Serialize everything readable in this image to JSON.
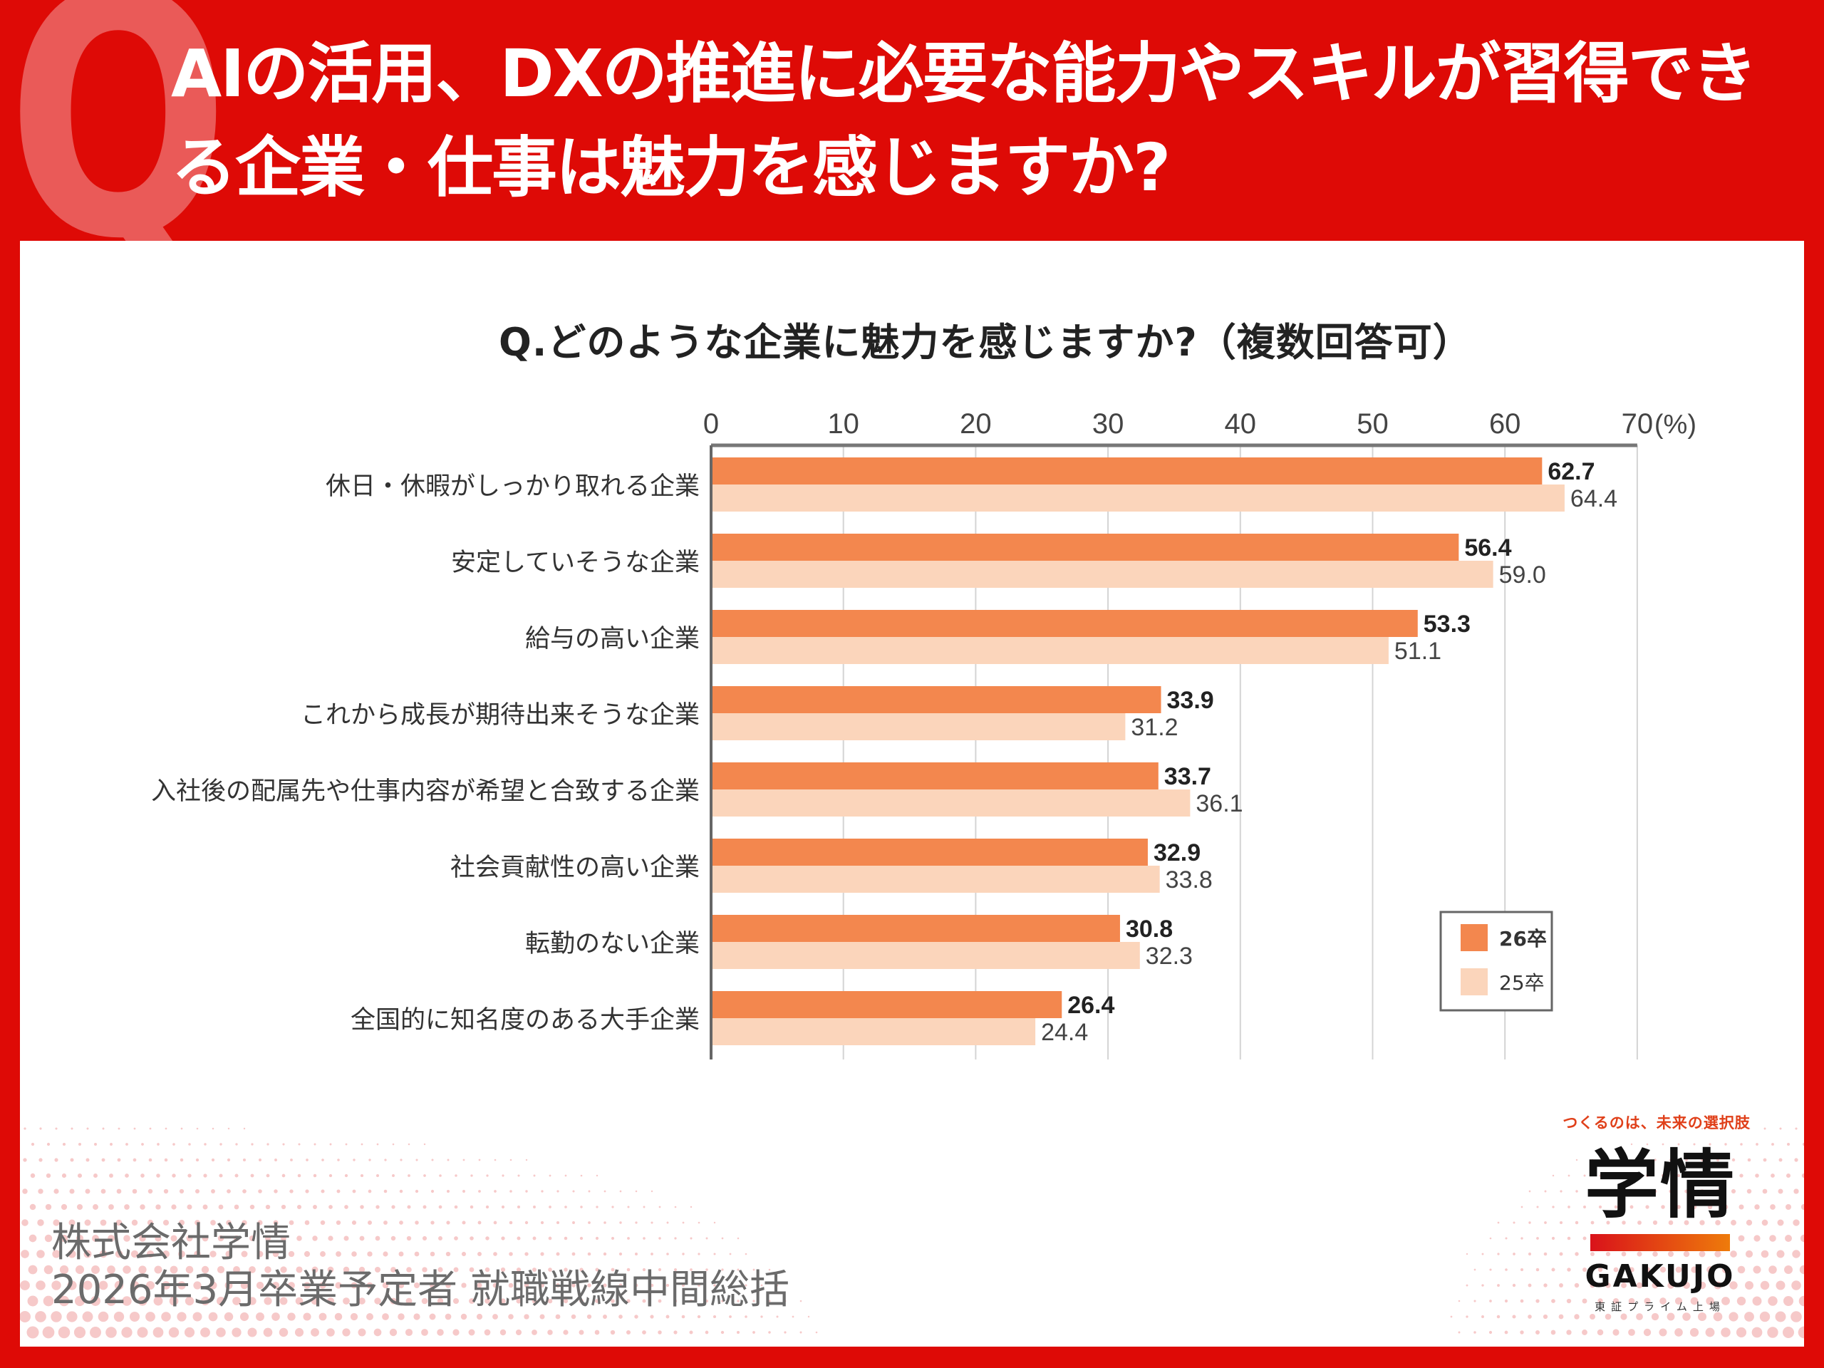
{
  "header": {
    "q_mark": "Q",
    "title_line1": "AIの活用、DXの推進に必要な能力やスキルが習得でき",
    "title_line2": "る企業・仕事は魅力を感じますか?"
  },
  "colors": {
    "background_red": "#de0a06",
    "series_26": "#f3874e",
    "series_25": "#fbd5bb"
  },
  "chart_data": {
    "type": "bar",
    "orientation": "horizontal",
    "title": "Q.どのような企業に魅力を感じますか?（複数回答可）",
    "xlabel": "",
    "ylabel": "",
    "unit_label": "(%)",
    "xlim": [
      0,
      70
    ],
    "xticks": [
      "0",
      "10",
      "20",
      "30",
      "40",
      "50",
      "60",
      "70"
    ],
    "grid": true,
    "legend_position": "bottom-right",
    "categories": [
      "休日・休暇がしっかり取れる企業",
      "安定していそうな企業",
      "給与の高い企業",
      "これから成長が期待出来そうな企業",
      "入社後の配属先や仕事内容が希望と合致する企業",
      "社会貢献性の高い企業",
      "転勤のない企業",
      "全国的に知名度のある大手企業"
    ],
    "series": [
      {
        "name": "26卒",
        "values": [
          62.7,
          56.4,
          53.3,
          33.9,
          33.7,
          32.9,
          30.8,
          26.4
        ],
        "labels": [
          "62.7",
          "56.4",
          "53.3",
          "33.9",
          "33.7",
          "32.9",
          "30.8",
          "26.4"
        ]
      },
      {
        "name": "25卒",
        "values": [
          64.4,
          59.0,
          51.1,
          31.2,
          36.1,
          33.8,
          32.3,
          24.4
        ],
        "labels": [
          "64.4",
          "59.0",
          "51.1",
          "31.2",
          "36.1",
          "33.8",
          "32.3",
          "24.4"
        ]
      }
    ]
  },
  "footer": {
    "source_line1": "株式会社学情",
    "source_line2": "2026年3月卒業予定者 就職戦線中間総括"
  },
  "logo": {
    "tagline": "つくるのは、未来の選択肢",
    "name_ja": "学情",
    "name_en": "GAKUJO",
    "listing": "東証プライム上場"
  }
}
